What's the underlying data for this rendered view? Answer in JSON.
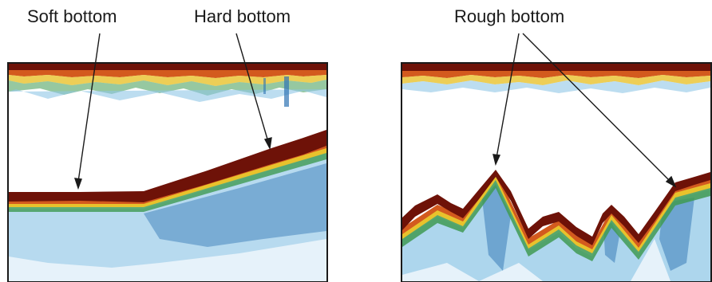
{
  "labels": {
    "soft": "Soft bottom",
    "hard": "Hard bottom",
    "rough": "Rough bottom"
  },
  "panels": [
    {
      "name": "flat-to-sloping-seabed-echogram"
    },
    {
      "name": "rough-seabed-echogram"
    }
  ],
  "colors": {
    "bottom_echo": "#6e1208",
    "echo_orange": "#d35a1e",
    "echo_yellow": "#e8c22c",
    "echo_green": "#3f9a52",
    "echo_blue": "#2f74b4",
    "echo_light_blue": "#8fc6e6",
    "frame": "#1a1a1a"
  }
}
